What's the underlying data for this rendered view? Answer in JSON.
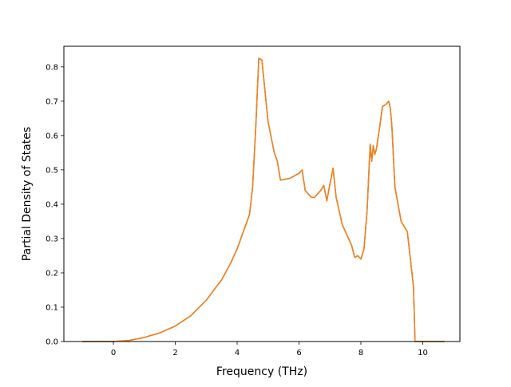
{
  "chart_data": {
    "type": "line",
    "title": "",
    "xlabel": "Frequency (THz)",
    "ylabel": "Partial Density of States",
    "xlim": [
      -1.6,
      11.2
    ],
    "ylim": [
      0.0,
      0.86
    ],
    "xticks": [
      0,
      2,
      4,
      6,
      8,
      10
    ],
    "yticks": [
      0.0,
      0.1,
      0.2,
      0.3,
      0.4,
      0.5,
      0.6,
      0.7,
      0.8
    ],
    "xtick_labels": [
      "0",
      "2",
      "4",
      "6",
      "8",
      "10"
    ],
    "ytick_labels": [
      "0.0",
      "0.1",
      "0.2",
      "0.3",
      "0.4",
      "0.5",
      "0.6",
      "0.7",
      "0.8"
    ],
    "grid": false,
    "series": [
      {
        "color": "#1f77b4",
        "x": [
          -1.0,
          0.0,
          0.5,
          1.0,
          1.5,
          2.0,
          2.5,
          3.0,
          3.5,
          3.8,
          4.0,
          4.2,
          4.4,
          4.5,
          4.6,
          4.7,
          4.8,
          5.0,
          5.2,
          5.3,
          5.4,
          5.7,
          6.0,
          6.1,
          6.2,
          6.4,
          6.5,
          6.7,
          6.8,
          6.9,
          7.0,
          7.1,
          7.2,
          7.4,
          7.6,
          7.7,
          7.8,
          7.9,
          8.0,
          8.1,
          8.2,
          8.3,
          8.35,
          8.4,
          8.45,
          8.5,
          8.6,
          8.7,
          8.8,
          8.9,
          8.95,
          9.0,
          9.1,
          9.3,
          9.5,
          9.6,
          9.7,
          9.75,
          10.0,
          10.7
        ],
        "y": [
          0.0,
          0.0,
          0.003,
          0.012,
          0.025,
          0.045,
          0.075,
          0.12,
          0.18,
          0.23,
          0.27,
          0.32,
          0.37,
          0.45,
          0.62,
          0.825,
          0.82,
          0.64,
          0.55,
          0.525,
          0.47,
          0.475,
          0.49,
          0.5,
          0.44,
          0.42,
          0.42,
          0.44,
          0.455,
          0.41,
          0.46,
          0.505,
          0.42,
          0.34,
          0.3,
          0.28,
          0.245,
          0.25,
          0.24,
          0.27,
          0.38,
          0.575,
          0.525,
          0.57,
          0.545,
          0.56,
          0.62,
          0.685,
          0.69,
          0.7,
          0.68,
          0.63,
          0.45,
          0.35,
          0.32,
          0.24,
          0.16,
          0.0,
          0.0,
          0.0
        ]
      },
      {
        "color": "#ff7f0e",
        "x": [
          -1.0,
          0.0,
          0.5,
          1.0,
          1.5,
          2.0,
          2.5,
          3.0,
          3.5,
          3.8,
          4.0,
          4.2,
          4.4,
          4.5,
          4.6,
          4.7,
          4.8,
          5.0,
          5.2,
          5.3,
          5.4,
          5.7,
          6.0,
          6.1,
          6.2,
          6.4,
          6.5,
          6.7,
          6.8,
          6.9,
          7.0,
          7.1,
          7.2,
          7.4,
          7.6,
          7.7,
          7.8,
          7.9,
          8.0,
          8.1,
          8.2,
          8.3,
          8.35,
          8.4,
          8.45,
          8.5,
          8.6,
          8.7,
          8.8,
          8.9,
          8.95,
          9.0,
          9.1,
          9.3,
          9.5,
          9.6,
          9.7,
          9.75,
          10.0,
          10.7
        ],
        "y": [
          0.0,
          0.0,
          0.003,
          0.012,
          0.025,
          0.045,
          0.075,
          0.12,
          0.18,
          0.23,
          0.27,
          0.32,
          0.37,
          0.45,
          0.62,
          0.825,
          0.82,
          0.64,
          0.55,
          0.525,
          0.47,
          0.475,
          0.49,
          0.5,
          0.44,
          0.42,
          0.42,
          0.44,
          0.455,
          0.41,
          0.46,
          0.505,
          0.42,
          0.34,
          0.3,
          0.28,
          0.245,
          0.25,
          0.24,
          0.27,
          0.38,
          0.575,
          0.525,
          0.57,
          0.545,
          0.56,
          0.62,
          0.685,
          0.69,
          0.7,
          0.68,
          0.63,
          0.45,
          0.35,
          0.32,
          0.24,
          0.16,
          0.0,
          0.0,
          0.0
        ]
      }
    ]
  }
}
